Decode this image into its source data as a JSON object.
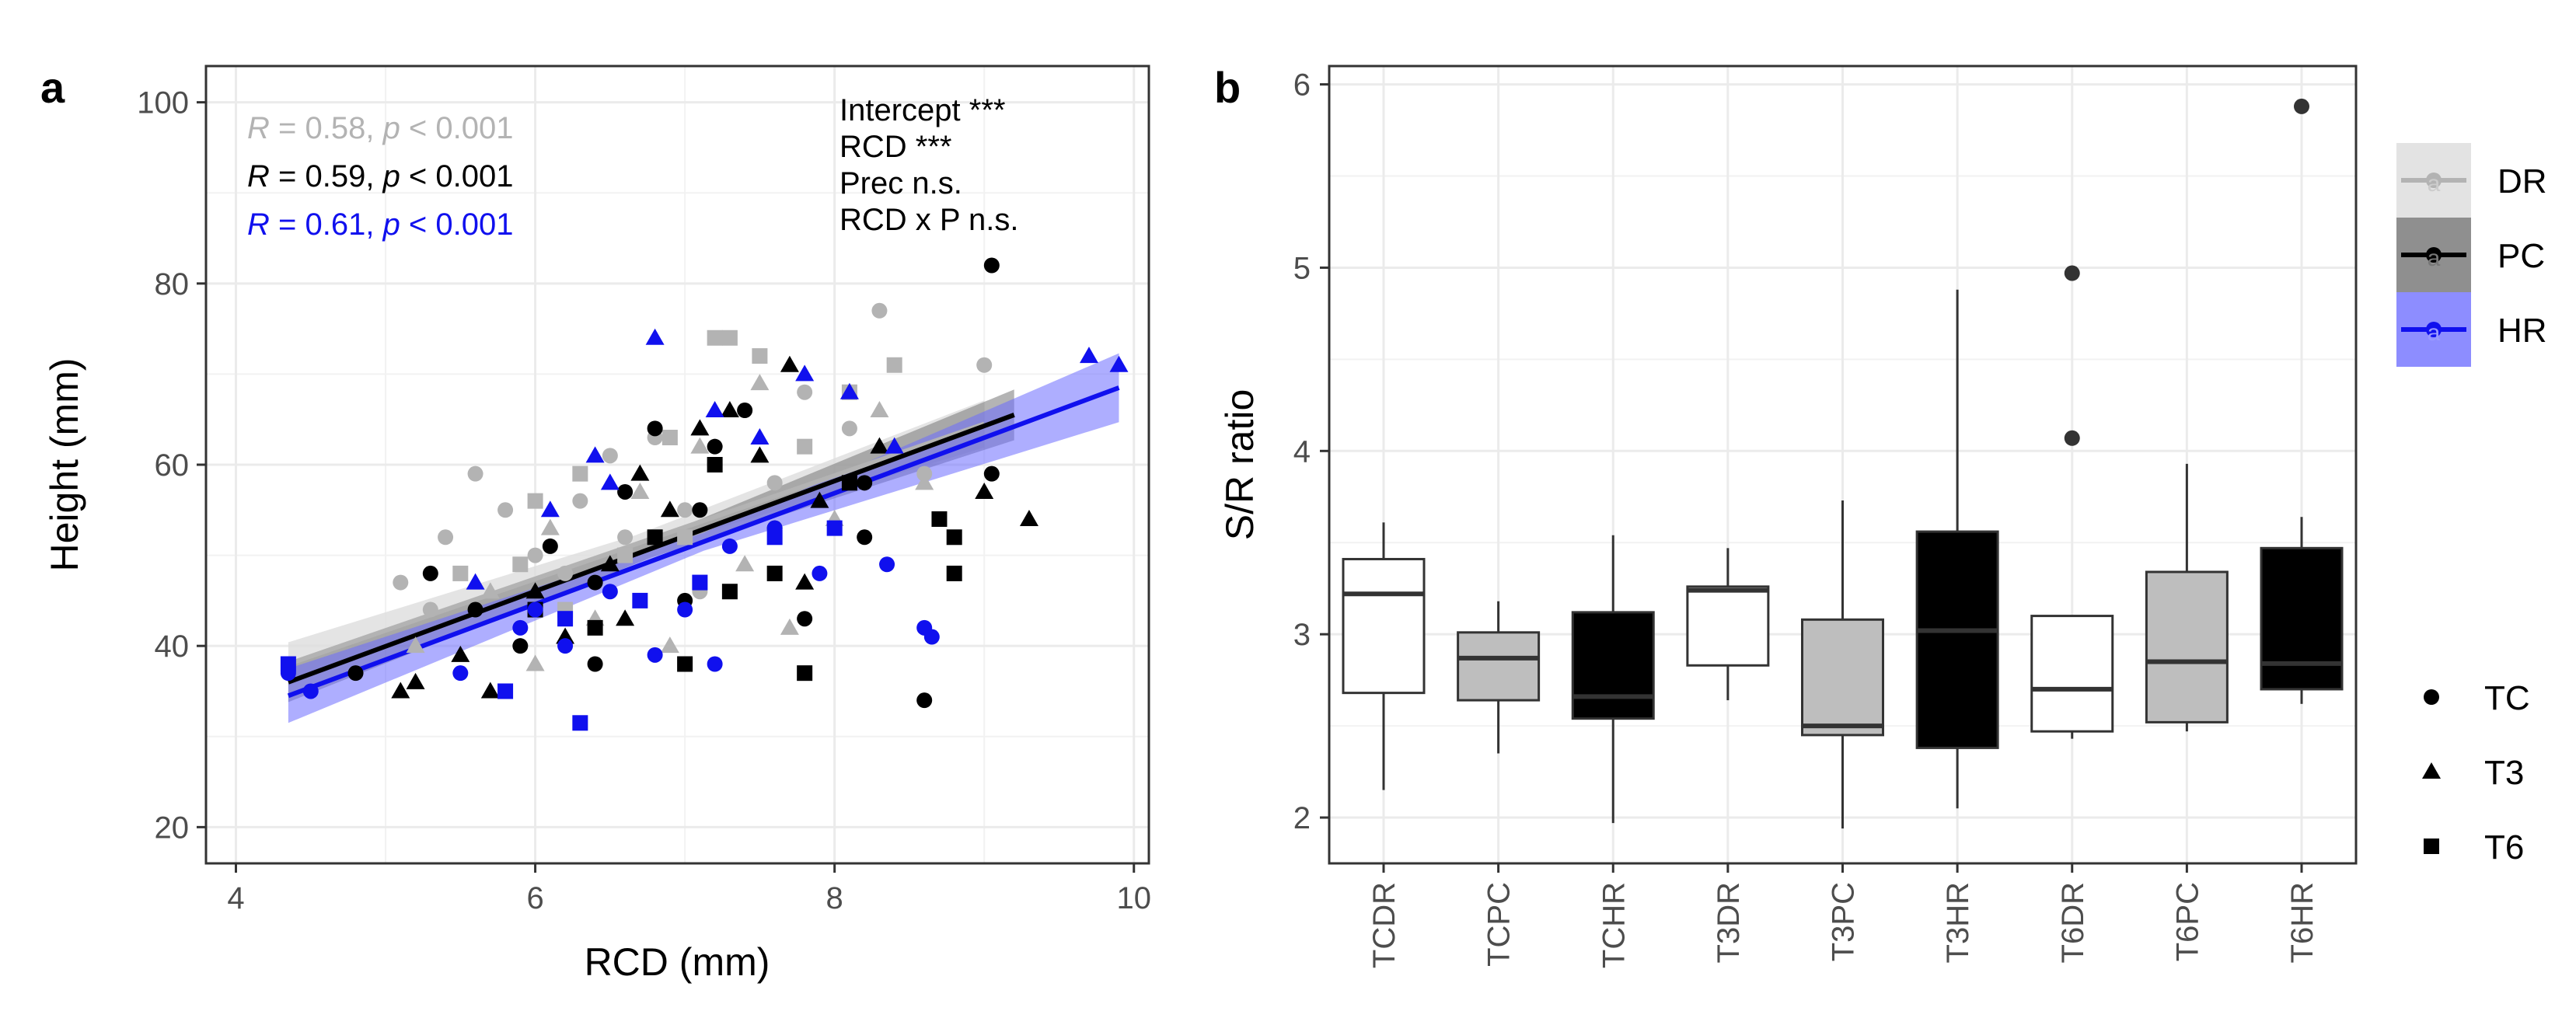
{
  "colors": {
    "DR": "#b3b3b3",
    "PC": "#000000",
    "HR": "#1010ee",
    "grid": "#ebebeb",
    "panel_border": "#333333"
  },
  "chart_data": [
    {
      "panel": "a",
      "type": "scatter",
      "xlabel": "RCD (mm)",
      "ylabel": "Height (mm)",
      "xlim": [
        3.8,
        10.1
      ],
      "ylim": [
        16,
        104
      ],
      "xticks": [
        4,
        6,
        8,
        10
      ],
      "yticks": [
        20,
        40,
        60,
        80,
        100
      ],
      "grid": true,
      "stats": [
        {
          "group": "DR",
          "r_label": "R",
          "r_text": " = 0.58, ",
          "p_label": "p",
          "p_text": " < 0.001"
        },
        {
          "group": "PC",
          "r_label": "R",
          "r_text": " = 0.59, ",
          "p_label": "p",
          "p_text": " < 0.001"
        },
        {
          "group": "HR",
          "r_label": "R",
          "r_text": " = 0.61, ",
          "p_label": "p",
          "p_text": " < 0.001"
        }
      ],
      "anova": [
        "Intercept ***",
        "RCD ***",
        "Prec n.s.",
        "RCD x P n.s."
      ],
      "fits": [
        {
          "group": "DR",
          "x": [
            4.35,
            9.0
          ],
          "y": [
            38.0,
            64.5
          ],
          "band": [
            2.4,
            2.6
          ]
        },
        {
          "group": "PC",
          "x": [
            4.35,
            9.2
          ],
          "y": [
            36.0,
            65.5
          ],
          "band": [
            2.2,
            2.8
          ]
        },
        {
          "group": "HR",
          "x": [
            4.35,
            9.9
          ],
          "y": [
            34.5,
            68.5
          ],
          "band": [
            3.0,
            3.8
          ]
        }
      ],
      "series": [
        {
          "group": "DR",
          "treatment": "TC",
          "points": [
            [
              5.1,
              47
            ],
            [
              5.4,
              52
            ],
            [
              5.6,
              59
            ],
            [
              5.8,
              55
            ],
            [
              6.0,
              50
            ],
            [
              6.2,
              48
            ],
            [
              6.5,
              61
            ],
            [
              6.8,
              63
            ],
            [
              7.0,
              55
            ],
            [
              7.2,
              60
            ],
            [
              7.4,
              66
            ],
            [
              7.6,
              58
            ],
            [
              7.8,
              68
            ],
            [
              8.1,
              64
            ],
            [
              8.3,
              77
            ],
            [
              8.6,
              59
            ],
            [
              9.0,
              71
            ],
            [
              6.3,
              56
            ],
            [
              5.3,
              44
            ],
            [
              7.1,
              46
            ],
            [
              6.6,
              52
            ]
          ]
        },
        {
          "group": "DR",
          "treatment": "T3",
          "points": [
            [
              5.2,
              40
            ],
            [
              5.7,
              46
            ],
            [
              6.1,
              53
            ],
            [
              6.4,
              43
            ],
            [
              6.7,
              57
            ],
            [
              7.1,
              62
            ],
            [
              7.4,
              49
            ],
            [
              7.7,
              42
            ],
            [
              8.0,
              54
            ],
            [
              8.3,
              66
            ],
            [
              6.9,
              40
            ],
            [
              7.5,
              69
            ],
            [
              6.0,
              38
            ],
            [
              8.6,
              58
            ]
          ]
        },
        {
          "group": "DR",
          "treatment": "T6",
          "points": [
            [
              5.5,
              48
            ],
            [
              6.0,
              56
            ],
            [
              6.3,
              59
            ],
            [
              6.6,
              50
            ],
            [
              6.9,
              63
            ],
            [
              7.2,
              74
            ],
            [
              7.3,
              74
            ],
            [
              7.5,
              72
            ],
            [
              7.8,
              62
            ],
            [
              8.1,
              68
            ],
            [
              8.4,
              71
            ],
            [
              6.2,
              44
            ],
            [
              7.0,
              52
            ],
            [
              5.9,
              49
            ]
          ]
        },
        {
          "group": "PC",
          "treatment": "TC",
          "points": [
            [
              4.8,
              37
            ],
            [
              5.3,
              48
            ],
            [
              5.6,
              44
            ],
            [
              5.9,
              40
            ],
            [
              6.1,
              51
            ],
            [
              6.4,
              38
            ],
            [
              6.6,
              57
            ],
            [
              6.8,
              64
            ],
            [
              7.0,
              45
            ],
            [
              7.2,
              62
            ],
            [
              7.4,
              66
            ],
            [
              7.6,
              53
            ],
            [
              7.8,
              43
            ],
            [
              8.2,
              58
            ],
            [
              8.6,
              34
            ],
            [
              9.05,
              82
            ],
            [
              9.05,
              59
            ],
            [
              8.2,
              52
            ],
            [
              6.4,
              47
            ],
            [
              7.1,
              55
            ]
          ]
        },
        {
          "group": "PC",
          "treatment": "T3",
          "points": [
            [
              5.1,
              35
            ],
            [
              5.5,
              39
            ],
            [
              5.7,
              35
            ],
            [
              6.0,
              46
            ],
            [
              6.2,
              41
            ],
            [
              6.5,
              49
            ],
            [
              6.7,
              59
            ],
            [
              6.9,
              55
            ],
            [
              7.1,
              64
            ],
            [
              7.3,
              66
            ],
            [
              7.5,
              61
            ],
            [
              7.7,
              71
            ],
            [
              7.9,
              56
            ],
            [
              8.3,
              62
            ],
            [
              9.0,
              57
            ],
            [
              9.3,
              54
            ],
            [
              5.2,
              36
            ],
            [
              6.6,
              43
            ],
            [
              7.8,
              47
            ]
          ]
        },
        {
          "group": "PC",
          "treatment": "T6",
          "points": [
            [
              6.0,
              44
            ],
            [
              6.4,
              42
            ],
            [
              6.8,
              52
            ],
            [
              7.0,
              38
            ],
            [
              7.3,
              46
            ],
            [
              7.6,
              48
            ],
            [
              7.8,
              37
            ],
            [
              8.1,
              58
            ],
            [
              8.7,
              54
            ],
            [
              8.8,
              48
            ],
            [
              8.8,
              52
            ],
            [
              7.2,
              60
            ]
          ]
        },
        {
          "group": "HR",
          "treatment": "TC",
          "points": [
            [
              4.35,
              37
            ],
            [
              4.5,
              35
            ],
            [
              5.5,
              37
            ],
            [
              5.9,
              42
            ],
            [
              6.2,
              40
            ],
            [
              6.5,
              46
            ],
            [
              6.8,
              39
            ],
            [
              7.0,
              44
            ],
            [
              7.3,
              51
            ],
            [
              7.6,
              53
            ],
            [
              7.9,
              48
            ],
            [
              8.35,
              49
            ],
            [
              8.6,
              42
            ],
            [
              8.65,
              41
            ],
            [
              7.2,
              38
            ],
            [
              6.0,
              44
            ]
          ]
        },
        {
          "group": "HR",
          "treatment": "T3",
          "points": [
            [
              5.6,
              47
            ],
            [
              6.1,
              55
            ],
            [
              6.4,
              61
            ],
            [
              6.8,
              74
            ],
            [
              7.2,
              66
            ],
            [
              7.5,
              63
            ],
            [
              7.8,
              70
            ],
            [
              8.1,
              68
            ],
            [
              8.4,
              62
            ],
            [
              9.7,
              72
            ],
            [
              9.9,
              71
            ],
            [
              6.5,
              58
            ]
          ]
        },
        {
          "group": "HR",
          "treatment": "T6",
          "points": [
            [
              4.35,
              38
            ],
            [
              5.8,
              35
            ],
            [
              6.2,
              43
            ],
            [
              6.3,
              31.5
            ],
            [
              6.7,
              45
            ],
            [
              7.1,
              47
            ],
            [
              7.6,
              52
            ],
            [
              8.0,
              53
            ]
          ]
        }
      ]
    },
    {
      "panel": "b",
      "type": "boxplot",
      "xlabel": "",
      "ylabel": "S/R ratio",
      "ylim": [
        1.75,
        6.1
      ],
      "yticks": [
        2,
        3,
        4,
        5,
        6
      ],
      "grid": true,
      "categories": [
        "TCDR",
        "TCPC",
        "TCHR",
        "T3DR",
        "T3PC",
        "T3HR",
        "T6DR",
        "T6PC",
        "T6HR"
      ],
      "boxes": [
        {
          "name": "TCDR",
          "group": "DR",
          "min": 2.15,
          "q1": 2.68,
          "median": 3.22,
          "q3": 3.41,
          "max": 3.61,
          "outliers": []
        },
        {
          "name": "TCPC",
          "group": "PC",
          "min": 2.35,
          "q1": 2.64,
          "median": 2.87,
          "q3": 3.01,
          "max": 3.18,
          "outliers": []
        },
        {
          "name": "TCHR",
          "group": "HR",
          "min": 1.97,
          "q1": 2.54,
          "median": 2.66,
          "q3": 3.12,
          "max": 3.54,
          "outliers": []
        },
        {
          "name": "T3DR",
          "group": "DR",
          "min": 2.64,
          "q1": 2.83,
          "median": 3.24,
          "q3": 3.26,
          "max": 3.47,
          "outliers": []
        },
        {
          "name": "T3PC",
          "group": "PC",
          "min": 1.94,
          "q1": 2.45,
          "median": 2.5,
          "q3": 3.08,
          "max": 3.73,
          "outliers": []
        },
        {
          "name": "T3HR",
          "group": "HR",
          "min": 2.05,
          "q1": 2.38,
          "median": 3.02,
          "q3": 3.56,
          "max": 4.88,
          "outliers": []
        },
        {
          "name": "T6DR",
          "group": "DR",
          "min": 2.43,
          "q1": 2.47,
          "median": 2.7,
          "q3": 3.1,
          "max": 3.1,
          "outliers": [
            4.07,
            4.97
          ]
        },
        {
          "name": "T6PC",
          "group": "PC",
          "min": 2.47,
          "q1": 2.52,
          "median": 2.85,
          "q3": 3.34,
          "max": 3.93,
          "outliers": []
        },
        {
          "name": "T6HR",
          "group": "HR",
          "min": 2.62,
          "q1": 2.7,
          "median": 2.84,
          "q3": 3.47,
          "max": 3.64,
          "outliers": [
            5.88
          ]
        }
      ]
    }
  ],
  "panel_labels": {
    "a": "a",
    "b": "b"
  },
  "legend": {
    "colour": [
      {
        "label": "DR"
      },
      {
        "label": "PC"
      },
      {
        "label": "HR"
      }
    ],
    "shape": [
      {
        "label": "TC",
        "shape": "circle"
      },
      {
        "label": "T3",
        "shape": "triangle"
      },
      {
        "label": "T6",
        "shape": "square"
      }
    ],
    "key_glyph": "a"
  }
}
